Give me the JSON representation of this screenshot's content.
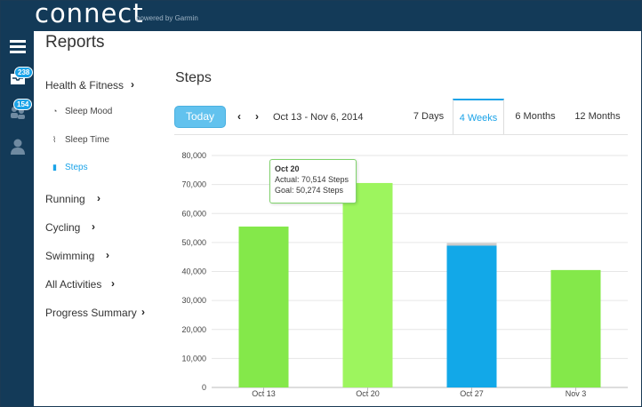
{
  "header": {
    "logo_text": "connect",
    "powered_by": "powered by Garmin"
  },
  "rail": {
    "menu_icon": "hamburger-menu-icon",
    "inbox_badge": "238",
    "connections_badge": "154",
    "profile_icon": "user-icon"
  },
  "page_title": "Reports",
  "nav": {
    "sections": [
      {
        "label": "Health & Fitness"
      },
      {
        "label": "Running"
      },
      {
        "label": "Cycling"
      },
      {
        "label": "Swimming"
      },
      {
        "label": "All Activities"
      },
      {
        "label": "Progress Summary"
      }
    ],
    "sub_items": [
      {
        "label": "Sleep Mood",
        "icon": "clock-icon"
      },
      {
        "label": "Sleep Time",
        "icon": "pulse-icon"
      },
      {
        "label": "Steps",
        "icon": "bar-chart-icon",
        "active": true
      }
    ]
  },
  "report": {
    "title": "Steps",
    "today_label": "Today",
    "date_range": "Oct 13 - Nov 6, 2014",
    "tabs": [
      {
        "label": "7 Days",
        "active": false
      },
      {
        "label": "4 Weeks",
        "active": true
      },
      {
        "label": "6 Months",
        "active": false
      },
      {
        "label": "12 Months",
        "active": false
      }
    ]
  },
  "tooltip": {
    "date": "Oct 20",
    "actual": "Actual: 70,514 Steps",
    "goal": "Goal: 50,274 Steps"
  },
  "colors": {
    "green": "#84e84a",
    "green_highlight": "#9df55e",
    "blue": "#12a8e8",
    "goal_gray": "#cccccc",
    "accent": "#1aa3e8"
  },
  "chart_data": {
    "type": "bar",
    "categories": [
      "Oct 13",
      "Oct 20",
      "Oct 27",
      "Nov 3"
    ],
    "values": [
      55500,
      70514,
      48900,
      40500
    ],
    "goal_values": [
      null,
      50274,
      49800,
      null
    ],
    "bar_colors": [
      "#84e84a",
      "#9df55e",
      "#12a8e8",
      "#84e84a"
    ],
    "ylim": [
      0,
      80000
    ],
    "yticks": [
      "0",
      "10,000",
      "20,000",
      "30,000",
      "40,000",
      "50,000",
      "60,000",
      "70,000",
      "80,000"
    ],
    "ytick_values": [
      0,
      10000,
      20000,
      30000,
      40000,
      50000,
      60000,
      70000,
      80000
    ],
    "grid": true
  }
}
